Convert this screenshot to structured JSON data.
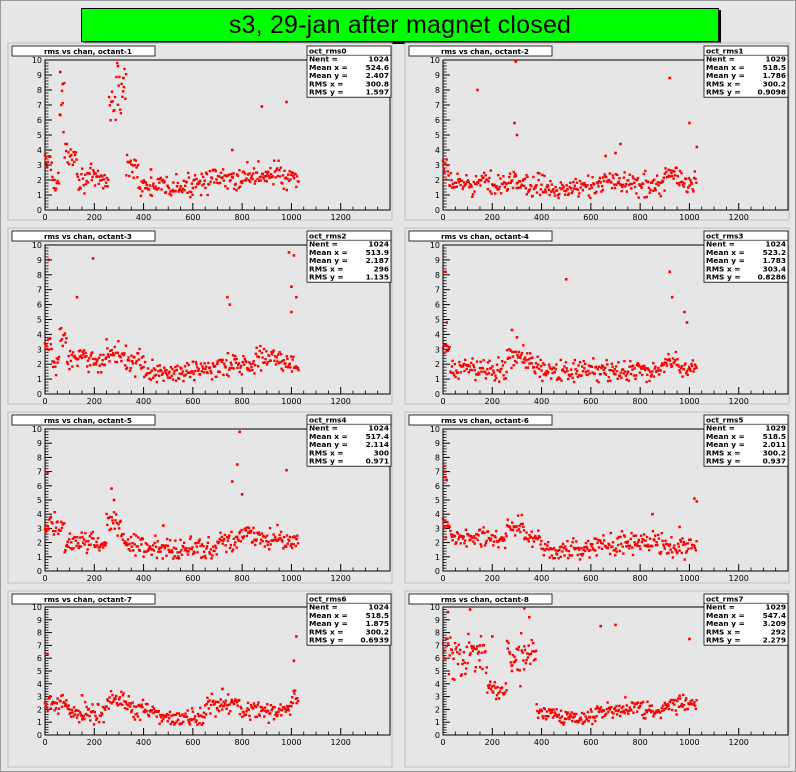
{
  "page": {
    "title": "s3, 29-jan after magnet closed",
    "colors": {
      "title_bg": "#00ff00",
      "marker": "#ff0000",
      "pad_bg": "#e6e6e6"
    }
  },
  "chart_data": [
    {
      "type": "scatter",
      "title": "rms vs chan, octant-1",
      "stats": {
        "name": "oct_rms0",
        "Nent": "1024",
        "Mean x": "524.6",
        "Mean y": "2.407",
        "RMS x": "300.8",
        "RMS y": "1.597"
      },
      "xlim": [
        0,
        1400
      ],
      "ylim": [
        0,
        10
      ],
      "xticks": [
        "0",
        "200",
        "400",
        "600",
        "800",
        "1000",
        "1200"
      ],
      "yticks": [
        "0",
        "1",
        "2",
        "3",
        "4",
        "5",
        "6",
        "7",
        "8",
        "9",
        "10"
      ],
      "segments": [
        [
          0,
          30,
          3.2
        ],
        [
          30,
          60,
          2.0
        ],
        [
          60,
          80,
          6.5
        ],
        [
          80,
          130,
          3.8
        ],
        [
          130,
          200,
          2.1
        ],
        [
          200,
          260,
          2.0
        ],
        [
          260,
          290,
          7.0
        ],
        [
          290,
          330,
          8.0
        ],
        [
          330,
          380,
          3.0
        ],
        [
          380,
          600,
          1.5
        ],
        [
          600,
          800,
          2.0
        ],
        [
          800,
          900,
          2.3
        ],
        [
          900,
          960,
          2.5
        ],
        [
          960,
          1030,
          2.0
        ]
      ],
      "outliers": [
        [
          62,
          9.2
        ],
        [
          72,
          8.4
        ],
        [
          296,
          9.6
        ],
        [
          318,
          8.8
        ],
        [
          880,
          6.9
        ],
        [
          980,
          7.2
        ],
        [
          430,
          2.7
        ],
        [
          760,
          4.0
        ]
      ]
    },
    {
      "type": "scatter",
      "title": "rms vs chan, octant-2",
      "stats": {
        "name": "oct_rms1",
        "Nent": "1029",
        "Mean x": "518.5",
        "Mean y": "1.786",
        "RMS x": "300.2",
        "RMS y": "0.9098"
      },
      "xlim": [
        0,
        1400
      ],
      "ylim": [
        0,
        10
      ],
      "xticks": [
        "0",
        "200",
        "400",
        "600",
        "800",
        "1000",
        "1200"
      ],
      "yticks": [
        "0",
        "1",
        "2",
        "3",
        "4",
        "5",
        "6",
        "7",
        "8",
        "9",
        "10"
      ],
      "segments": [
        [
          0,
          20,
          2.6
        ],
        [
          20,
          300,
          1.8
        ],
        [
          300,
          340,
          1.9
        ],
        [
          340,
          650,
          1.5
        ],
        [
          650,
          740,
          2.1
        ],
        [
          740,
          900,
          1.7
        ],
        [
          900,
          950,
          2.4
        ],
        [
          950,
          1030,
          1.8
        ]
      ],
      "outliers": [
        [
          295,
          9.9
        ],
        [
          140,
          8.0
        ],
        [
          290,
          5.8
        ],
        [
          300,
          5.0
        ],
        [
          920,
          8.8
        ],
        [
          1000,
          5.8
        ],
        [
          1030,
          4.2
        ],
        [
          660,
          3.6
        ],
        [
          700,
          3.8
        ],
        [
          720,
          4.4
        ]
      ]
    },
    {
      "type": "scatter",
      "title": "rms vs chan, octant-3",
      "stats": {
        "name": "oct_rms2",
        "Nent": "1024",
        "Mean x": "513.9",
        "Mean y": "2.187",
        "RMS x": "296",
        "RMS y": "1.135"
      },
      "xlim": [
        0,
        1400
      ],
      "ylim": [
        0,
        10
      ],
      "xticks": [
        "0",
        "200",
        "400",
        "600",
        "800",
        "1000",
        "1200"
      ],
      "yticks": [
        "0",
        "1",
        "2",
        "3",
        "4",
        "5",
        "6",
        "7",
        "8",
        "9",
        "10"
      ],
      "segments": [
        [
          0,
          30,
          3.3
        ],
        [
          30,
          60,
          2.0
        ],
        [
          60,
          90,
          3.8
        ],
        [
          90,
          250,
          2.3
        ],
        [
          250,
          330,
          2.7
        ],
        [
          330,
          400,
          2.2
        ],
        [
          400,
          600,
          1.4
        ],
        [
          600,
          700,
          1.7
        ],
        [
          700,
          850,
          2.0
        ],
        [
          850,
          960,
          2.4
        ],
        [
          960,
          1030,
          2.0
        ]
      ],
      "outliers": [
        [
          15,
          9.0
        ],
        [
          195,
          9.1
        ],
        [
          130,
          6.5
        ],
        [
          740,
          6.5
        ],
        [
          750,
          6.0
        ],
        [
          990,
          9.5
        ],
        [
          1010,
          9.3
        ],
        [
          1000,
          7.2
        ],
        [
          1020,
          6.5
        ],
        [
          1000,
          5.5
        ]
      ]
    },
    {
      "type": "scatter",
      "title": "rms vs chan, octant-4",
      "stats": {
        "name": "oct_rms3",
        "Nent": "1024",
        "Mean x": "523.2",
        "Mean y": "1.783",
        "RMS x": "303.4",
        "RMS y": "0.8286"
      },
      "xlim": [
        0,
        1400
      ],
      "ylim": [
        0,
        10
      ],
      "xticks": [
        "0",
        "200",
        "400",
        "600",
        "800",
        "1000",
        "1200"
      ],
      "yticks": [
        "0",
        "1",
        "2",
        "3",
        "4",
        "5",
        "6",
        "7",
        "8",
        "9",
        "10"
      ],
      "segments": [
        [
          0,
          30,
          2.8
        ],
        [
          30,
          260,
          1.7
        ],
        [
          260,
          330,
          2.5
        ],
        [
          330,
          400,
          2.0
        ],
        [
          400,
          900,
          1.5
        ],
        [
          900,
          960,
          2.2
        ],
        [
          960,
          1030,
          1.7
        ]
      ],
      "outliers": [
        [
          10,
          8.2
        ],
        [
          15,
          4.8
        ],
        [
          500,
          7.7
        ],
        [
          920,
          8.2
        ],
        [
          930,
          6.5
        ],
        [
          980,
          5.5
        ],
        [
          990,
          4.8
        ],
        [
          280,
          4.3
        ],
        [
          300,
          3.8
        ]
      ]
    },
    {
      "type": "scatter",
      "title": "rms vs chan, octant-5",
      "stats": {
        "name": "oct_rms4",
        "Nent": "1024",
        "Mean x": "517.4",
        "Mean y": "2.114",
        "RMS x": "300",
        "RMS y": "0.971"
      },
      "xlim": [
        0,
        1400
      ],
      "ylim": [
        0,
        10
      ],
      "xticks": [
        "0",
        "200",
        "400",
        "600",
        "800",
        "1000",
        "1200"
      ],
      "yticks": [
        "0",
        "1",
        "2",
        "3",
        "4",
        "5",
        "6",
        "7",
        "8",
        "9",
        "10"
      ],
      "segments": [
        [
          0,
          80,
          3.2
        ],
        [
          80,
          250,
          2.0
        ],
        [
          250,
          310,
          3.4
        ],
        [
          310,
          400,
          2.0
        ],
        [
          400,
          700,
          1.6
        ],
        [
          700,
          780,
          2.0
        ],
        [
          780,
          850,
          2.6
        ],
        [
          850,
          1030,
          2.3
        ]
      ],
      "outliers": [
        [
          10,
          6.9
        ],
        [
          790,
          9.8
        ],
        [
          780,
          7.5
        ],
        [
          760,
          6.3
        ],
        [
          800,
          5.4
        ],
        [
          980,
          7.1
        ],
        [
          270,
          5.8
        ],
        [
          280,
          5.0
        ],
        [
          480,
          3.2
        ]
      ]
    },
    {
      "type": "scatter",
      "title": "rms vs chan, octant-6",
      "stats": {
        "name": "oct_rms5",
        "Nent": "1029",
        "Mean x": "518.5",
        "Mean y": "2.011",
        "RMS x": "300.2",
        "RMS y": "0.937"
      },
      "xlim": [
        0,
        1400
      ],
      "ylim": [
        0,
        10
      ],
      "xticks": [
        "0",
        "200",
        "400",
        "600",
        "800",
        "1000",
        "1200"
      ],
      "yticks": [
        "0",
        "1",
        "2",
        "3",
        "4",
        "5",
        "6",
        "7",
        "8",
        "9",
        "10"
      ],
      "segments": [
        [
          0,
          30,
          3.0
        ],
        [
          30,
          260,
          2.3
        ],
        [
          260,
          330,
          3.0
        ],
        [
          330,
          400,
          2.4
        ],
        [
          400,
          600,
          1.4
        ],
        [
          600,
          900,
          2.0
        ],
        [
          900,
          1030,
          1.7
        ]
      ],
      "outliers": [
        [
          5,
          7.4
        ],
        [
          8,
          7.0
        ],
        [
          10,
          6.6
        ],
        [
          15,
          6.4
        ],
        [
          1020,
          5.1
        ],
        [
          1030,
          4.9
        ],
        [
          850,
          4.0
        ],
        [
          960,
          3.1
        ]
      ]
    },
    {
      "type": "scatter",
      "title": "rms vs chan, octant-7",
      "stats": {
        "name": "oct_rms6",
        "Nent": "1024",
        "Mean x": "518.5",
        "Mean y": "1.875",
        "RMS x": "300.2",
        "RMS y": "0.6939"
      },
      "xlim": [
        0,
        1400
      ],
      "ylim": [
        0,
        10
      ],
      "xticks": [
        "0",
        "200",
        "400",
        "600",
        "800",
        "1000",
        "1200"
      ],
      "yticks": [
        "0",
        "1",
        "2",
        "3",
        "4",
        "5",
        "6",
        "7",
        "8",
        "9",
        "10"
      ],
      "segments": [
        [
          0,
          100,
          2.4
        ],
        [
          100,
          250,
          1.7
        ],
        [
          250,
          350,
          2.7
        ],
        [
          350,
          450,
          2.0
        ],
        [
          450,
          650,
          1.4
        ],
        [
          650,
          800,
          2.3
        ],
        [
          800,
          1000,
          1.9
        ],
        [
          1000,
          1030,
          2.8
        ]
      ],
      "outliers": [
        [
          10,
          6.3
        ],
        [
          1020,
          7.7
        ],
        [
          1010,
          5.8
        ],
        [
          150,
          3.1
        ],
        [
          720,
          3.6
        ]
      ]
    },
    {
      "type": "scatter",
      "title": "rms vs chan, octant-8",
      "stats": {
        "name": "oct_rms7",
        "Nent": "1029",
        "Mean x": "547.4",
        "Mean y": "3.209",
        "RMS x": "292",
        "RMS y": "2.279"
      },
      "xlim": [
        0,
        1400
      ],
      "ylim": [
        0,
        10
      ],
      "xticks": [
        "0",
        "200",
        "400",
        "600",
        "800",
        "1000",
        "1200"
      ],
      "yticks": [
        "0",
        "1",
        "2",
        "3",
        "4",
        "5",
        "6",
        "7",
        "8",
        "9",
        "10"
      ],
      "segments": [
        [
          0,
          40,
          6.5
        ],
        [
          40,
          100,
          6.0
        ],
        [
          100,
          180,
          6.5
        ],
        [
          180,
          260,
          3.5
        ],
        [
          260,
          330,
          6.0
        ],
        [
          330,
          380,
          6.5
        ],
        [
          380,
          480,
          1.7
        ],
        [
          480,
          620,
          1.4
        ],
        [
          620,
          900,
          2.0
        ],
        [
          900,
          1030,
          2.3
        ]
      ],
      "outliers": [
        [
          20,
          9.6
        ],
        [
          110,
          9.8
        ],
        [
          200,
          7.7
        ],
        [
          330,
          9.9
        ],
        [
          350,
          9.2
        ],
        [
          700,
          8.6
        ],
        [
          640,
          8.5
        ],
        [
          1000,
          7.5
        ],
        [
          150,
          7.0
        ],
        [
          280,
          5.0
        ]
      ]
    }
  ]
}
